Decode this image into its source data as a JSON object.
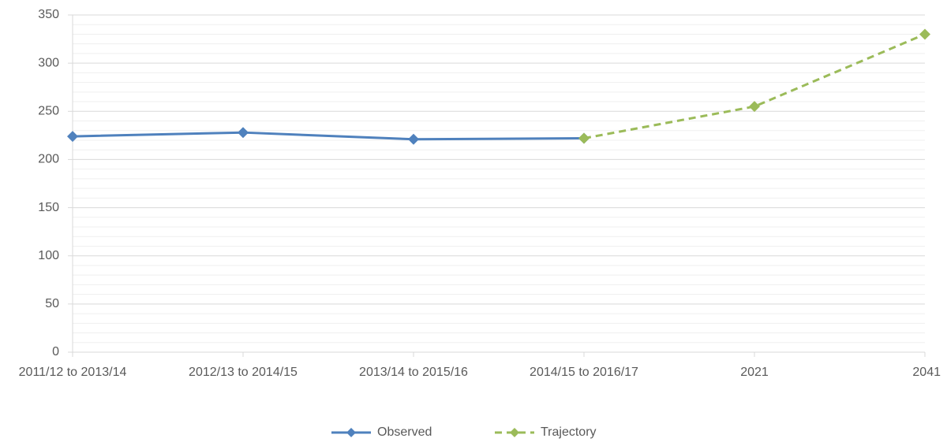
{
  "chart_data": {
    "type": "line",
    "categories": [
      "2011/12 to 2013/14",
      "2012/13 to 2014/15",
      "2013/14 to 2015/16",
      "2014/15 to 2016/17",
      "2021",
      "2041"
    ],
    "series": [
      {
        "name": "Observed",
        "color": "#4f81bd",
        "dashed": false,
        "values": [
          224,
          228,
          221,
          222,
          null,
          null
        ]
      },
      {
        "name": "Trajectory",
        "color": "#9bbb59",
        "dashed": true,
        "values": [
          null,
          null,
          null,
          222,
          255,
          330
        ]
      }
    ],
    "ylim": [
      0,
      350
    ],
    "yticks": [
      0,
      50,
      100,
      150,
      200,
      250,
      300,
      350
    ],
    "grid": true,
    "minor_grid": true,
    "legend": "bottom"
  }
}
